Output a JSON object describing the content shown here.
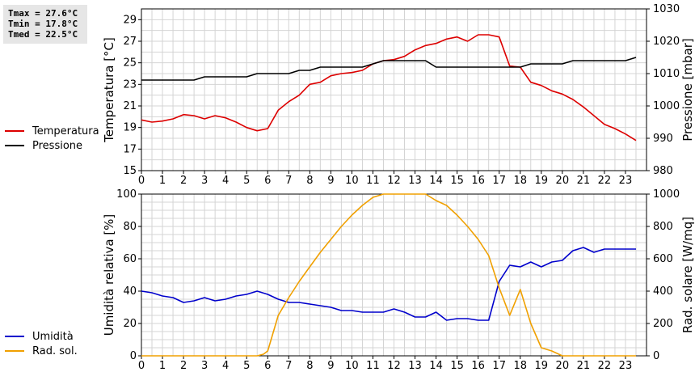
{
  "stats": {
    "tmax": "Tmax = 27.6°C",
    "tmin": "Tmin = 17.8°C",
    "tmed": "Tmed = 22.5°C"
  },
  "colors": {
    "temperatura": "#dd0000",
    "pressione": "#000000",
    "umidita": "#0000cc",
    "rad_sol": "#f0a000",
    "grid": "#d4d4d4"
  },
  "chart_data": [
    {
      "type": "line",
      "grid": true,
      "legend_placement": "left",
      "x_ticks": [
        "0",
        "1",
        "2",
        "3",
        "4",
        "5",
        "6",
        "7",
        "8",
        "9",
        "10",
        "11",
        "12",
        "13",
        "14",
        "15",
        "16",
        "17",
        "18",
        "19",
        "20",
        "21",
        "22",
        "23"
      ],
      "xlim": [
        0,
        24
      ],
      "ylabel_left": "Temperatura [°C]",
      "ylabel_right": "Pressione [mbar]",
      "ylim_left": [
        15,
        30
      ],
      "ylim_right": [
        980,
        1030
      ],
      "yticks_left": [
        "15",
        "17",
        "19",
        "21",
        "23",
        "25",
        "27",
        "29"
      ],
      "yticks_right": [
        "980",
        "990",
        "1000",
        "1010",
        "1020",
        "1030"
      ],
      "series": [
        {
          "name": "Temperatura",
          "axis": "left",
          "x": [
            0,
            0.5,
            1,
            1.5,
            2,
            2.5,
            3,
            3.5,
            4,
            4.5,
            5,
            5.5,
            6,
            6.5,
            7,
            7.5,
            8,
            8.5,
            9,
            9.5,
            10,
            10.5,
            11,
            11.5,
            12,
            12.5,
            13,
            13.5,
            14,
            14.5,
            15,
            15.5,
            16,
            16.5,
            17,
            17.5,
            18,
            18.5,
            19,
            19.5,
            20,
            20.5,
            21,
            21.5,
            22,
            22.5,
            23,
            23.5
          ],
          "values": [
            19.7,
            19.5,
            19.6,
            19.8,
            20.2,
            20.1,
            19.8,
            20.1,
            19.9,
            19.5,
            19.0,
            18.7,
            18.9,
            20.6,
            21.4,
            22.0,
            23.0,
            23.2,
            23.8,
            24.0,
            24.1,
            24.3,
            24.9,
            25.2,
            25.3,
            25.6,
            26.2,
            26.6,
            26.8,
            27.2,
            27.4,
            27.0,
            27.6,
            27.6,
            27.4,
            24.7,
            24.6,
            23.2,
            22.9,
            22.4,
            22.1,
            21.6,
            20.9,
            20.1,
            19.3,
            18.9,
            18.4,
            17.8
          ]
        },
        {
          "name": "Pressione",
          "axis": "right",
          "x": [
            0,
            2.5,
            3,
            5,
            5.5,
            7,
            7.5,
            8,
            8.5,
            10.5,
            11,
            11.5,
            13.5,
            14,
            18,
            18.5,
            20,
            20.5,
            23,
            23.5
          ],
          "values": [
            1008,
            1008,
            1009,
            1009,
            1010,
            1010,
            1011,
            1011,
            1012,
            1012,
            1013,
            1014,
            1014,
            1012,
            1012,
            1013,
            1013,
            1014,
            1014,
            1015
          ]
        }
      ]
    },
    {
      "type": "line",
      "grid": true,
      "legend_placement": "left",
      "x_ticks": [
        "0",
        "1",
        "2",
        "3",
        "4",
        "5",
        "6",
        "7",
        "8",
        "9",
        "10",
        "11",
        "12",
        "13",
        "14",
        "15",
        "16",
        "17",
        "18",
        "19",
        "20",
        "21",
        "22",
        "23"
      ],
      "xlim": [
        0,
        24
      ],
      "ylabel_left": "Umidità relativa [%]",
      "ylabel_right": "Rad. solare [W/mq]",
      "ylim_left": [
        0,
        100
      ],
      "ylim_right": [
        0,
        1000
      ],
      "yticks_left": [
        "0",
        "20",
        "40",
        "60",
        "80",
        "100"
      ],
      "yticks_right": [
        "0",
        "200",
        "400",
        "600",
        "800",
        "1000"
      ],
      "series": [
        {
          "name": "Umidità",
          "axis": "left",
          "x": [
            0,
            0.5,
            1,
            1.5,
            2,
            2.5,
            3,
            3.5,
            4,
            4.5,
            5,
            5.5,
            6,
            6.5,
            7,
            7.5,
            8,
            8.5,
            9,
            9.5,
            10,
            10.5,
            11,
            11.5,
            12,
            12.5,
            13,
            13.5,
            14,
            14.5,
            15,
            15.5,
            16,
            16.5,
            17,
            17.5,
            18,
            18.5,
            19,
            19.5,
            20,
            20.5,
            21,
            21.5,
            22,
            22.5,
            23,
            23.5
          ],
          "values": [
            40,
            39,
            37,
            36,
            33,
            34,
            36,
            34,
            35,
            37,
            38,
            40,
            38,
            35,
            33,
            33,
            32,
            31,
            30,
            28,
            28,
            27,
            27,
            27,
            29,
            27,
            24,
            24,
            27,
            22,
            23,
            23,
            22,
            22,
            46,
            56,
            55,
            58,
            55,
            58,
            59,
            65,
            67,
            64,
            66,
            66,
            66,
            66
          ]
        },
        {
          "name": "Rad. sol.",
          "axis": "right",
          "x": [
            0,
            5.5,
            5.8,
            6,
            6.5,
            7,
            7.5,
            8,
            8.5,
            9,
            9.5,
            10,
            10.5,
            11,
            11.5,
            12,
            12.5,
            13,
            13.5,
            14,
            14.5,
            15,
            15.5,
            16,
            16.5,
            17,
            17.5,
            18,
            18.5,
            19,
            19.5,
            20,
            20.5,
            21,
            21.5,
            22,
            22.5,
            23,
            23.5
          ],
          "values": [
            0,
            0,
            10,
            30,
            250,
            360,
            460,
            550,
            640,
            720,
            800,
            870,
            930,
            980,
            1000,
            1000,
            1000,
            1000,
            1000,
            960,
            930,
            870,
            800,
            720,
            620,
            420,
            250,
            410,
            200,
            50,
            30,
            0,
            0,
            0,
            0,
            0,
            0,
            0,
            0
          ]
        }
      ]
    }
  ]
}
